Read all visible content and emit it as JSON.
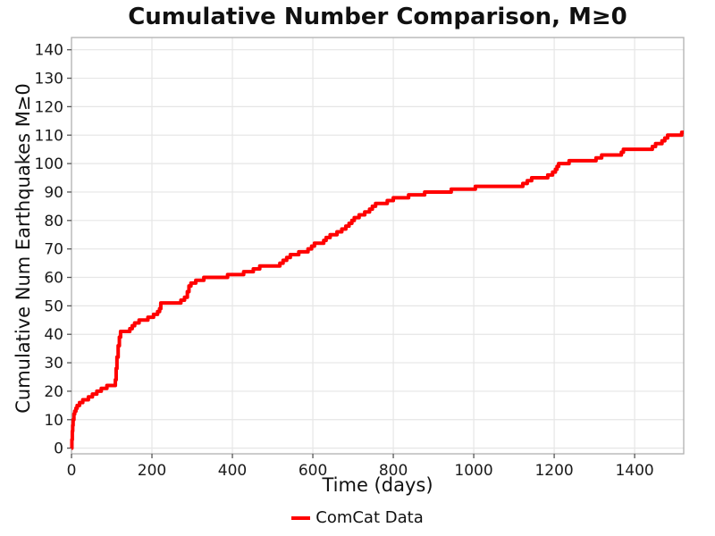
{
  "chart_data": {
    "type": "line",
    "title": "Cumulative Number Comparison, M≥0",
    "xlabel": "Time (days)",
    "ylabel": "Cumulative Num Earthquakes M≥0",
    "line_shape": "step-after",
    "grid": true,
    "legend_position": "bottom-center",
    "xlim": [
      0,
      1522
    ],
    "ylim": [
      -2,
      144.3
    ],
    "x_ticks": [
      0,
      200,
      400,
      600,
      800,
      1000,
      1200,
      1400
    ],
    "y_ticks": [
      0,
      10,
      20,
      30,
      40,
      50,
      60,
      70,
      80,
      90,
      100,
      110,
      120,
      130,
      140
    ],
    "series": [
      {
        "name": "ComCat Data",
        "color": "#ff0000",
        "points": [
          [
            0,
            0
          ],
          [
            1,
            3
          ],
          [
            2,
            6
          ],
          [
            3,
            8
          ],
          [
            4,
            10
          ],
          [
            6,
            12
          ],
          [
            8,
            13
          ],
          [
            11,
            14
          ],
          [
            14,
            15
          ],
          [
            20,
            16
          ],
          [
            28,
            17
          ],
          [
            42,
            18
          ],
          [
            52,
            19
          ],
          [
            63,
            20
          ],
          [
            74,
            21
          ],
          [
            88,
            22
          ],
          [
            109,
            24
          ],
          [
            111,
            28
          ],
          [
            113,
            32
          ],
          [
            116,
            36
          ],
          [
            119,
            39
          ],
          [
            122,
            41
          ],
          [
            145,
            42
          ],
          [
            151,
            43
          ],
          [
            157,
            44
          ],
          [
            168,
            45
          ],
          [
            190,
            46
          ],
          [
            204,
            47
          ],
          [
            214,
            48
          ],
          [
            219,
            49
          ],
          [
            222,
            51
          ],
          [
            272,
            52
          ],
          [
            281,
            53
          ],
          [
            288,
            55
          ],
          [
            292,
            57
          ],
          [
            297,
            58
          ],
          [
            309,
            59
          ],
          [
            329,
            60
          ],
          [
            388,
            61
          ],
          [
            428,
            62
          ],
          [
            452,
            63
          ],
          [
            468,
            64
          ],
          [
            518,
            65
          ],
          [
            526,
            66
          ],
          [
            535,
            67
          ],
          [
            544,
            68
          ],
          [
            565,
            69
          ],
          [
            588,
            70
          ],
          [
            597,
            71
          ],
          [
            604,
            72
          ],
          [
            627,
            73
          ],
          [
            633,
            74
          ],
          [
            643,
            75
          ],
          [
            660,
            76
          ],
          [
            672,
            77
          ],
          [
            682,
            78
          ],
          [
            690,
            79
          ],
          [
            697,
            80
          ],
          [
            703,
            81
          ],
          [
            715,
            82
          ],
          [
            729,
            83
          ],
          [
            741,
            84
          ],
          [
            748,
            85
          ],
          [
            756,
            86
          ],
          [
            785,
            87
          ],
          [
            800,
            88
          ],
          [
            838,
            89
          ],
          [
            878,
            90
          ],
          [
            944,
            91
          ],
          [
            1004,
            92
          ],
          [
            1122,
            93
          ],
          [
            1133,
            94
          ],
          [
            1144,
            95
          ],
          [
            1184,
            96
          ],
          [
            1196,
            97
          ],
          [
            1203,
            98
          ],
          [
            1207,
            99
          ],
          [
            1211,
            100
          ],
          [
            1237,
            101
          ],
          [
            1304,
            102
          ],
          [
            1318,
            103
          ],
          [
            1367,
            104
          ],
          [
            1372,
            105
          ],
          [
            1444,
            106
          ],
          [
            1452,
            107
          ],
          [
            1468,
            108
          ],
          [
            1475,
            109
          ],
          [
            1482,
            110
          ],
          [
            1517,
            111
          ],
          [
            1522,
            111
          ]
        ]
      }
    ]
  }
}
